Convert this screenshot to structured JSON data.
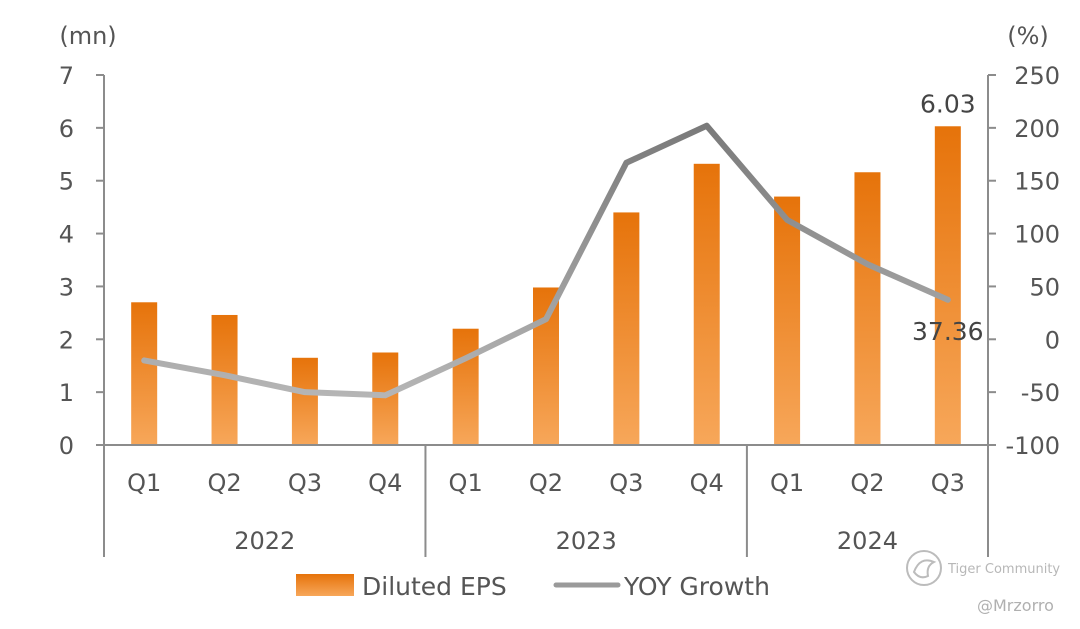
{
  "chart_data": {
    "type": "bar",
    "categories": [
      "Q1",
      "Q2",
      "Q3",
      "Q4",
      "Q1",
      "Q2",
      "Q3",
      "Q4",
      "Q1",
      "Q2",
      "Q3"
    ],
    "groups": [
      {
        "label": "2022",
        "count": 4
      },
      {
        "label": "2023",
        "count": 4
      },
      {
        "label": "2024",
        "count": 3
      }
    ],
    "series": [
      {
        "name": "Diluted EPS",
        "type": "bar",
        "axis": "left",
        "color": "#e8780e",
        "values": [
          2.7,
          2.46,
          1.65,
          1.75,
          2.2,
          2.98,
          4.4,
          5.32,
          4.7,
          5.16,
          6.03
        ]
      },
      {
        "name": "YOY Growth",
        "type": "line",
        "axis": "right",
        "color": "#8a8a8a",
        "values": [
          -20,
          -34,
          -50,
          -53,
          -18,
          19,
          167,
          202,
          113,
          71,
          37.36
        ]
      }
    ],
    "left_axis": {
      "unit": "(mn)",
      "min": 0,
      "max": 7,
      "ticks": [
        "0",
        "1",
        "2",
        "3",
        "4",
        "5",
        "6",
        "7"
      ]
    },
    "right_axis": {
      "unit": "(%)",
      "min": -100,
      "max": 250,
      "ticks": [
        "-100",
        "-50",
        "0",
        "50",
        "100",
        "150",
        "200",
        "250"
      ]
    },
    "data_labels": [
      {
        "series": 0,
        "index": 10,
        "text": "6.03"
      },
      {
        "series": 1,
        "index": 10,
        "text": "37.36"
      }
    ],
    "legend": {
      "position": "bottom"
    },
    "grid": false
  },
  "watermark": {
    "brand": "Tiger Community",
    "handle": "@Mrzorro"
  }
}
